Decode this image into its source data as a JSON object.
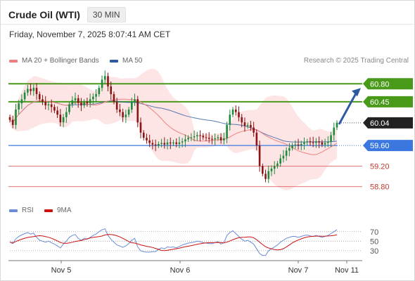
{
  "header": {
    "title": "Crude Oil (WTI)",
    "timeframe": "30 MIN",
    "timestamp": "Friday, November 7, 2025 8:07:41 AM CET"
  },
  "legend": {
    "ma20": "MA 20 + Bollinger Bands",
    "ma50": "MA 50",
    "rsi": "RSI",
    "rsi_ma": "9MA"
  },
  "credit": "Research © 2025 Trading Central",
  "colors": {
    "ma20": "#f08080",
    "ma50": "#2c5aa0",
    "band": "#fde0e0",
    "up": "#1e8a3c",
    "down": "#8b1414",
    "resistance": "#4a9a1a",
    "support": "#3a78e0",
    "lower_support": "#e06060",
    "current": "#222222",
    "arrow": "#2c5aa0",
    "rsi": "#6a8cd8",
    "rsi_ma": "#cc1111"
  },
  "chart_data": {
    "type": "candlestick",
    "ylim": [
      58.55,
      61.05
    ],
    "x_labels": [
      "Nov 5",
      "Nov 6",
      "Nov 7",
      "Nov 11"
    ],
    "levels": [
      {
        "value": 60.8,
        "label": "60.80",
        "kind": "resistance"
      },
      {
        "value": 60.45,
        "label": "60.45",
        "kind": "resistance"
      },
      {
        "value": 60.04,
        "label": "60.04",
        "kind": "current"
      },
      {
        "value": 59.6,
        "label": "59.60",
        "kind": "support"
      },
      {
        "value": 59.2,
        "label": "59.20",
        "kind": "lower_support"
      },
      {
        "value": 58.8,
        "label": "58.80",
        "kind": "lower_support"
      }
    ],
    "closes": [
      60.1,
      60.0,
      60.3,
      60.42,
      60.5,
      60.63,
      60.7,
      60.66,
      60.72,
      60.6,
      60.5,
      60.45,
      60.38,
      60.4,
      60.35,
      60.28,
      60.2,
      60.05,
      60.15,
      60.25,
      60.4,
      60.48,
      60.52,
      60.43,
      60.38,
      60.45,
      60.42,
      60.5,
      60.55,
      60.6,
      60.72,
      60.88,
      60.95,
      60.75,
      60.6,
      60.45,
      60.3,
      60.25,
      60.15,
      60.2,
      60.3,
      60.45,
      60.5,
      60.05,
      59.85,
      59.75,
      59.7,
      59.65,
      59.62,
      59.6,
      59.63,
      59.65,
      59.62,
      59.66,
      59.64,
      59.66,
      59.63,
      59.66,
      59.68,
      59.72,
      59.75,
      59.76,
      59.78,
      59.8,
      59.79,
      59.76,
      59.75,
      59.73,
      59.72,
      59.74,
      59.76,
      59.7,
      59.74,
      60.0,
      60.2,
      60.3,
      60.25,
      60.15,
      60.05,
      59.98,
      60.0,
      59.95,
      59.85,
      59.6,
      59.2,
      59.05,
      58.95,
      59.1,
      59.15,
      59.2,
      59.25,
      59.35,
      59.4,
      59.5,
      59.55,
      59.6,
      59.62,
      59.6,
      59.63,
      59.66,
      59.68,
      59.66,
      59.65,
      59.68,
      59.66,
      59.62,
      59.65,
      59.67,
      59.8,
      59.95,
      60.04
    ],
    "rsi": [
      48,
      45,
      55,
      60,
      63,
      66,
      68,
      65,
      67,
      58,
      52,
      50,
      48,
      50,
      47,
      44,
      40,
      36,
      44,
      50,
      58,
      62,
      64,
      56,
      52,
      56,
      54,
      58,
      62,
      65,
      70,
      74,
      76,
      62,
      54,
      48,
      42,
      40,
      37,
      40,
      45,
      52,
      56,
      38,
      30,
      28,
      27,
      27,
      28,
      28,
      33,
      36,
      34,
      38,
      37,
      38,
      36,
      39,
      42,
      44,
      46,
      47,
      48,
      50,
      49,
      47,
      46,
      45,
      45,
      47,
      49,
      44,
      47,
      62,
      68,
      72,
      66,
      60,
      54,
      50,
      52,
      48,
      44,
      34,
      24,
      20,
      20,
      30,
      34,
      38,
      42,
      48,
      52,
      56,
      58,
      60,
      60,
      58,
      60,
      62,
      63,
      61,
      60,
      62,
      60,
      58,
      60,
      62,
      66,
      70,
      74
    ],
    "rsi_ticks": [
      70,
      50,
      30
    ],
    "rsi_ylim": [
      18,
      80
    ]
  }
}
